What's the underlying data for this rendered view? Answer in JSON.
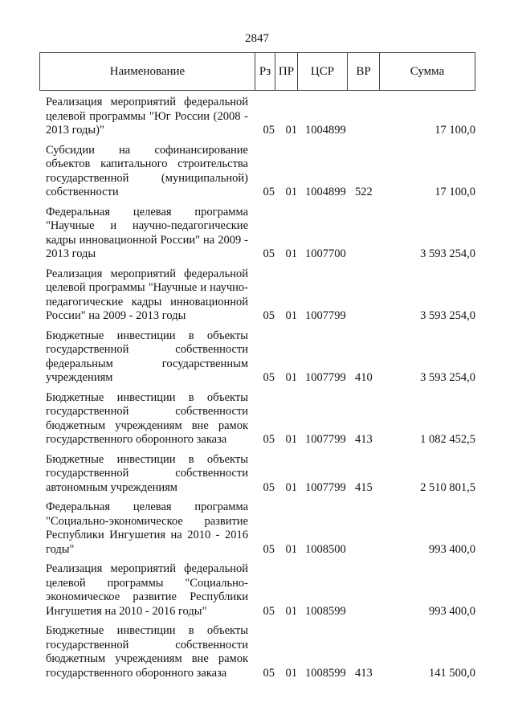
{
  "page_number": "2847",
  "header": {
    "name": "Наименование",
    "rz": "Рз",
    "pr": "ПР",
    "csr": "ЦСР",
    "vr": "ВР",
    "sum": "Сумма"
  },
  "rows": [
    {
      "name": "Реализация мероприятий федеральной целевой программы \"Юг России (2008 - 2013 годы)\"",
      "rz": "05",
      "pr": "01",
      "csr": "1004899",
      "vr": "",
      "sum": "17 100,0"
    },
    {
      "name": "Субсидии на софинансирование объектов капитального строительства государственной (муниципальной) собственности",
      "rz": "05",
      "pr": "01",
      "csr": "1004899",
      "vr": "522",
      "sum": "17 100,0"
    },
    {
      "name": "Федеральная целевая программа \"Научные и научно-педагогические кадры инновационной России\" на 2009 - 2013 годы",
      "rz": "05",
      "pr": "01",
      "csr": "1007700",
      "vr": "",
      "sum": "3 593 254,0"
    },
    {
      "name": "Реализация мероприятий федеральной целевой программы \"Научные и научно-педагогические кадры инновационной России\" на 2009 - 2013 годы",
      "rz": "05",
      "pr": "01",
      "csr": "1007799",
      "vr": "",
      "sum": "3 593 254,0"
    },
    {
      "name": "Бюджетные инвестиции в объекты государственной собственности федеральным государственным учреждениям",
      "rz": "05",
      "pr": "01",
      "csr": "1007799",
      "vr": "410",
      "sum": "3 593 254,0"
    },
    {
      "name": "Бюджетные инвестиции в объекты государственной собственности бюджетным учреждениям вне рамок государственного оборонного заказа",
      "rz": "05",
      "pr": "01",
      "csr": "1007799",
      "vr": "413",
      "sum": "1 082 452,5"
    },
    {
      "name": "Бюджетные инвестиции в объекты государственной собственности автономным учреждениям",
      "rz": "05",
      "pr": "01",
      "csr": "1007799",
      "vr": "415",
      "sum": "2 510 801,5"
    },
    {
      "name": "Федеральная целевая программа \"Социально-экономическое развитие Республики Ингушетия на 2010 - 2016 годы\"",
      "rz": "05",
      "pr": "01",
      "csr": "1008500",
      "vr": "",
      "sum": "993 400,0"
    },
    {
      "name": "Реализация мероприятий федеральной целевой программы \"Социально-экономическое развитие Республики Ингушетия на 2010 - 2016 годы\"",
      "rz": "05",
      "pr": "01",
      "csr": "1008599",
      "vr": "",
      "sum": "993 400,0"
    },
    {
      "name": "Бюджетные инвестиции в объекты государственной собственности бюджетным учреждениям вне рамок государственного оборонного заказа",
      "rz": "05",
      "pr": "01",
      "csr": "1008599",
      "vr": "413",
      "sum": "141 500,0"
    }
  ]
}
